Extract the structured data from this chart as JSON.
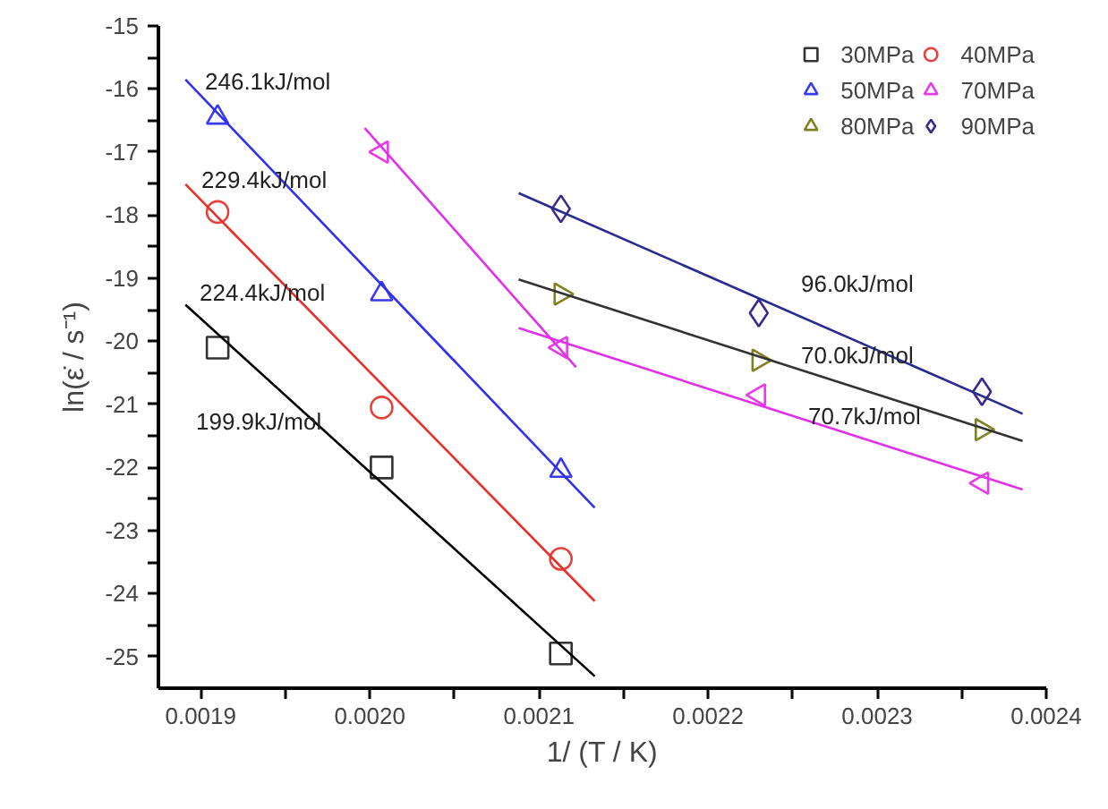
{
  "chart_data": {
    "type": "scatter",
    "xlabel": "1/ (T / K)",
    "ylabel": "ln(ε̇ / s⁻¹)",
    "xlim": [
      0.001875,
      0.0024
    ],
    "ylim": [
      -25.5,
      -15
    ],
    "xticks": [
      {
        "value": 0.0019,
        "label": "0.0019"
      },
      {
        "value": 0.00195,
        "label": null
      },
      {
        "value": 0.002,
        "label": "0.0020"
      },
      {
        "value": 0.00205,
        "label": null
      },
      {
        "value": 0.0021,
        "label": "0.0021"
      },
      {
        "value": 0.00215,
        "label": null
      },
      {
        "value": 0.0022,
        "label": "0.0022"
      },
      {
        "value": 0.00225,
        "label": null
      },
      {
        "value": 0.0023,
        "label": "0.0023"
      },
      {
        "value": 0.00235,
        "label": null
      },
      {
        "value": 0.0024,
        "label": "0.0024"
      }
    ],
    "yticks": [
      -25,
      {
        "value": -24.5,
        "label": null
      },
      -24,
      {
        "value": -23.5,
        "label": null
      },
      -23,
      {
        "value": -22.5,
        "label": null
      },
      -22,
      {
        "value": -21.5,
        "label": null
      },
      -21,
      {
        "value": -20.5,
        "label": null
      },
      -20,
      {
        "value": -19.5,
        "label": null
      },
      -19,
      {
        "value": -18.5,
        "label": null
      },
      -18,
      {
        "value": -17.5,
        "label": null
      },
      -17,
      {
        "value": -16.5,
        "label": null
      },
      -16,
      {
        "value": -15.5,
        "label": null
      },
      -15
    ],
    "grid": false,
    "legend": "top right",
    "series": [
      {
        "name": "30MPa",
        "marker": "square",
        "color": "#333333",
        "x": [
          0.00191,
          0.002007,
          0.002113
        ],
        "values": [
          -20.1,
          -22.0,
          -24.95
        ]
      },
      {
        "name": "40MPa",
        "marker": "circle",
        "color": "#e8403a",
        "x": [
          0.00191,
          0.002007,
          0.002113
        ],
        "values": [
          -17.95,
          -21.05,
          -23.45
        ]
      },
      {
        "name": "50MPa",
        "marker": "triangle",
        "color": "#3a3af0",
        "x": [
          0.00191,
          0.002007,
          0.002113
        ],
        "values": [
          -16.45,
          -19.25,
          -22.05
        ]
      },
      {
        "name": "70MPa",
        "marker": "triangle_left",
        "color": "#e83ae8",
        "x": [
          0.002007,
          0.002113,
          0.00223,
          0.002362
        ],
        "values": [
          -17.0,
          -20.1,
          -20.85,
          -22.25
        ]
      },
      {
        "name": "80MPa",
        "marker": "triangle_right",
        "color": "#808020",
        "x": [
          0.002113,
          0.00223,
          0.002362
        ],
        "values": [
          -19.25,
          -20.3,
          -21.4
        ]
      },
      {
        "name": "90MPa",
        "marker": "diamond",
        "color": "#3a2a90",
        "x": [
          0.002113,
          0.00223,
          0.002362
        ],
        "values": [
          -17.9,
          -19.55,
          -20.8
        ]
      },
      {
        "type": "line",
        "color": "#000000",
        "x": [
          0.001891,
          0.002133
        ],
        "values": [
          -19.42,
          -25.31
        ]
      },
      {
        "type": "line",
        "color": "#e8302a",
        "x": [
          0.001891,
          0.002133
        ],
        "values": [
          -17.51,
          -24.12
        ]
      },
      {
        "type": "line",
        "color": "#3030f0",
        "x": [
          0.001891,
          0.002133
        ],
        "values": [
          -15.85,
          -22.64
        ]
      },
      {
        "type": "line",
        "color": "#e030e8",
        "x": [
          0.001997,
          0.002122
        ],
        "values": [
          -16.62,
          -20.41
        ]
      },
      {
        "type": "line",
        "color": "#e030e8",
        "x": [
          0.002088,
          0.002386
        ],
        "values": [
          -19.79,
          -22.35
        ]
      },
      {
        "type": "line",
        "color": "#333333",
        "x": [
          0.002088,
          0.002386
        ],
        "values": [
          -19.02,
          -21.58
        ]
      },
      {
        "type": "line",
        "color": "#2a2a90",
        "x": [
          0.002088,
          0.002386
        ],
        "values": [
          -17.65,
          -21.15
        ]
      }
    ],
    "annotations": [
      "246.1kJ/mol",
      "229.4kJ/mol",
      "224.4kJ/mol",
      "199.9kJ/mol",
      "96.0kJ/mol",
      "70.0kJ/mol",
      "70.7kJ/mol"
    ]
  }
}
